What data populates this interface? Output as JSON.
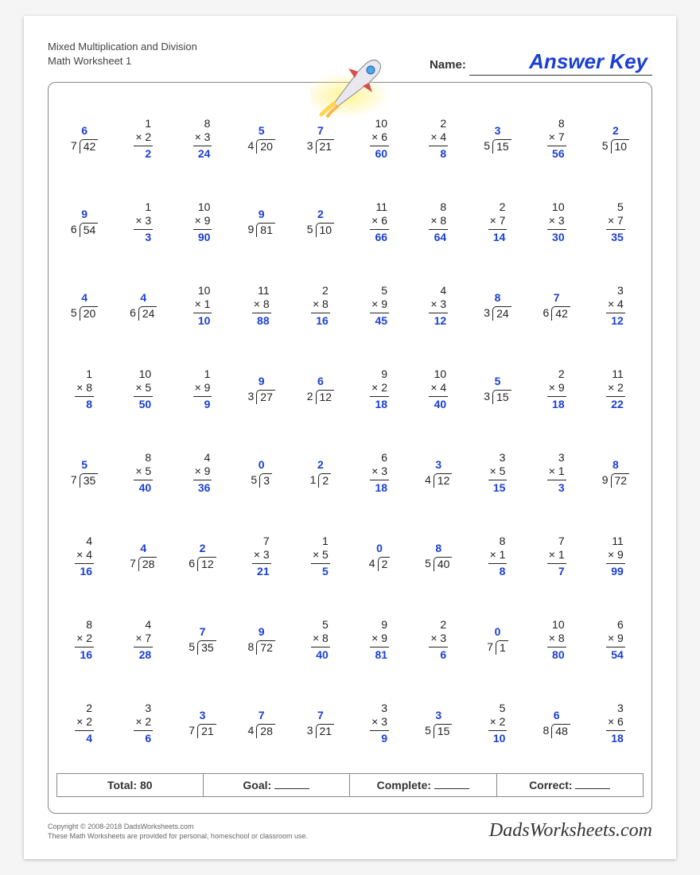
{
  "header": {
    "title_line1": "Mixed Multiplication and Division",
    "title_line2": "Math Worksheet 1",
    "name_label": "Name:",
    "answer_key": "Answer Key"
  },
  "colors": {
    "answer": "#1a3fd4",
    "text": "#222222",
    "border": "#888888",
    "page_bg": "#ffffff"
  },
  "problems": [
    [
      {
        "t": "d",
        "dvr": 7,
        "dvd": 42,
        "q": 6
      },
      {
        "t": "m",
        "a": 1,
        "b": 2,
        "r": 2
      },
      {
        "t": "m",
        "a": 8,
        "b": 3,
        "r": 24
      },
      {
        "t": "d",
        "dvr": 4,
        "dvd": 20,
        "q": 5
      },
      {
        "t": "d",
        "dvr": 3,
        "dvd": 21,
        "q": 7
      },
      {
        "t": "m",
        "a": 10,
        "b": 6,
        "r": 60
      },
      {
        "t": "m",
        "a": 2,
        "b": 4,
        "r": 8
      },
      {
        "t": "d",
        "dvr": 5,
        "dvd": 15,
        "q": 3
      },
      {
        "t": "m",
        "a": 8,
        "b": 7,
        "r": 56
      },
      {
        "t": "d",
        "dvr": 5,
        "dvd": 10,
        "q": 2
      }
    ],
    [
      {
        "t": "d",
        "dvr": 6,
        "dvd": 54,
        "q": 9
      },
      {
        "t": "m",
        "a": 1,
        "b": 3,
        "r": 3
      },
      {
        "t": "m",
        "a": 10,
        "b": 9,
        "r": 90
      },
      {
        "t": "d",
        "dvr": 9,
        "dvd": 81,
        "q": 9
      },
      {
        "t": "d",
        "dvr": 5,
        "dvd": 10,
        "q": 2
      },
      {
        "t": "m",
        "a": 11,
        "b": 6,
        "r": 66
      },
      {
        "t": "m",
        "a": 8,
        "b": 8,
        "r": 64
      },
      {
        "t": "m",
        "a": 2,
        "b": 7,
        "r": 14
      },
      {
        "t": "m",
        "a": 10,
        "b": 3,
        "r": 30
      },
      {
        "t": "m",
        "a": 5,
        "b": 7,
        "r": 35
      }
    ],
    [
      {
        "t": "d",
        "dvr": 5,
        "dvd": 20,
        "q": 4
      },
      {
        "t": "d",
        "dvr": 6,
        "dvd": 24,
        "q": 4
      },
      {
        "t": "m",
        "a": 10,
        "b": 1,
        "r": 10
      },
      {
        "t": "m",
        "a": 11,
        "b": 8,
        "r": 88
      },
      {
        "t": "m",
        "a": 2,
        "b": 8,
        "r": 16
      },
      {
        "t": "m",
        "a": 5,
        "b": 9,
        "r": 45
      },
      {
        "t": "m",
        "a": 4,
        "b": 3,
        "r": 12
      },
      {
        "t": "d",
        "dvr": 3,
        "dvd": 24,
        "q": 8
      },
      {
        "t": "d",
        "dvr": 6,
        "dvd": 42,
        "q": 7
      },
      {
        "t": "m",
        "a": 3,
        "b": 4,
        "r": 12
      }
    ],
    [
      {
        "t": "m",
        "a": 1,
        "b": 8,
        "r": 8
      },
      {
        "t": "m",
        "a": 10,
        "b": 5,
        "r": 50
      },
      {
        "t": "m",
        "a": 1,
        "b": 9,
        "r": 9
      },
      {
        "t": "d",
        "dvr": 3,
        "dvd": 27,
        "q": 9
      },
      {
        "t": "d",
        "dvr": 2,
        "dvd": 12,
        "q": 6
      },
      {
        "t": "m",
        "a": 9,
        "b": 2,
        "r": 18
      },
      {
        "t": "m",
        "a": 10,
        "b": 4,
        "r": 40
      },
      {
        "t": "d",
        "dvr": 3,
        "dvd": 15,
        "q": 5
      },
      {
        "t": "m",
        "a": 2,
        "b": 9,
        "r": 18
      },
      {
        "t": "m",
        "a": 11,
        "b": 2,
        "r": 22
      }
    ],
    [
      {
        "t": "d",
        "dvr": 7,
        "dvd": 35,
        "q": 5
      },
      {
        "t": "m",
        "a": 8,
        "b": 5,
        "r": 40
      },
      {
        "t": "m",
        "a": 4,
        "b": 9,
        "r": 36
      },
      {
        "t": "d",
        "dvr": 5,
        "dvd": 3,
        "q": 0
      },
      {
        "t": "d",
        "dvr": 1,
        "dvd": 2,
        "q": 2
      },
      {
        "t": "m",
        "a": 6,
        "b": 3,
        "r": 18
      },
      {
        "t": "d",
        "dvr": 4,
        "dvd": 12,
        "q": 3
      },
      {
        "t": "m",
        "a": 3,
        "b": 5,
        "r": 15
      },
      {
        "t": "m",
        "a": 3,
        "b": 1,
        "r": 3
      },
      {
        "t": "d",
        "dvr": 9,
        "dvd": 72,
        "q": 8
      }
    ],
    [
      {
        "t": "m",
        "a": 4,
        "b": 4,
        "r": 16
      },
      {
        "t": "d",
        "dvr": 7,
        "dvd": 28,
        "q": 4
      },
      {
        "t": "d",
        "dvr": 6,
        "dvd": 12,
        "q": 2
      },
      {
        "t": "m",
        "a": 7,
        "b": 3,
        "r": 21
      },
      {
        "t": "m",
        "a": 1,
        "b": 5,
        "r": 5
      },
      {
        "t": "d",
        "dvr": 4,
        "dvd": 2,
        "q": 0
      },
      {
        "t": "d",
        "dvr": 5,
        "dvd": 40,
        "q": 8
      },
      {
        "t": "m",
        "a": 8,
        "b": 1,
        "r": 8
      },
      {
        "t": "m",
        "a": 7,
        "b": 1,
        "r": 7
      },
      {
        "t": "m",
        "a": 11,
        "b": 9,
        "r": 99
      }
    ],
    [
      {
        "t": "m",
        "a": 8,
        "b": 2,
        "r": 16
      },
      {
        "t": "m",
        "a": 4,
        "b": 7,
        "r": 28
      },
      {
        "t": "d",
        "dvr": 5,
        "dvd": 35,
        "q": 7
      },
      {
        "t": "d",
        "dvr": 8,
        "dvd": 72,
        "q": 9
      },
      {
        "t": "m",
        "a": 5,
        "b": 8,
        "r": 40
      },
      {
        "t": "m",
        "a": 9,
        "b": 9,
        "r": 81
      },
      {
        "t": "m",
        "a": 2,
        "b": 3,
        "r": 6
      },
      {
        "t": "d",
        "dvr": 7,
        "dvd": 1,
        "q": 0
      },
      {
        "t": "m",
        "a": 10,
        "b": 8,
        "r": 80
      },
      {
        "t": "m",
        "a": 6,
        "b": 9,
        "r": 54
      }
    ],
    [
      {
        "t": "m",
        "a": 2,
        "b": 2,
        "r": 4
      },
      {
        "t": "m",
        "a": 3,
        "b": 2,
        "r": 6
      },
      {
        "t": "d",
        "dvr": 7,
        "dvd": 21,
        "q": 3
      },
      {
        "t": "d",
        "dvr": 4,
        "dvd": 28,
        "q": 7
      },
      {
        "t": "d",
        "dvr": 3,
        "dvd": 21,
        "q": 7
      },
      {
        "t": "m",
        "a": 3,
        "b": 3,
        "r": 9
      },
      {
        "t": "d",
        "dvr": 5,
        "dvd": 15,
        "q": 3
      },
      {
        "t": "m",
        "a": 5,
        "b": 2,
        "r": 10
      },
      {
        "t": "d",
        "dvr": 8,
        "dvd": 48,
        "q": 6
      },
      {
        "t": "m",
        "a": 3,
        "b": 6,
        "r": 18
      }
    ]
  ],
  "summary": {
    "total_label": "Total:",
    "total_value": "80",
    "goal_label": "Goal:",
    "complete_label": "Complete:",
    "correct_label": "Correct:"
  },
  "footer": {
    "copyright": "Copyright © 2008-2018 DadsWorksheets.com",
    "note": "These Math Worksheets are provided for personal, homeschool or classroom use.",
    "logo": "DadsWorksheets.com"
  }
}
